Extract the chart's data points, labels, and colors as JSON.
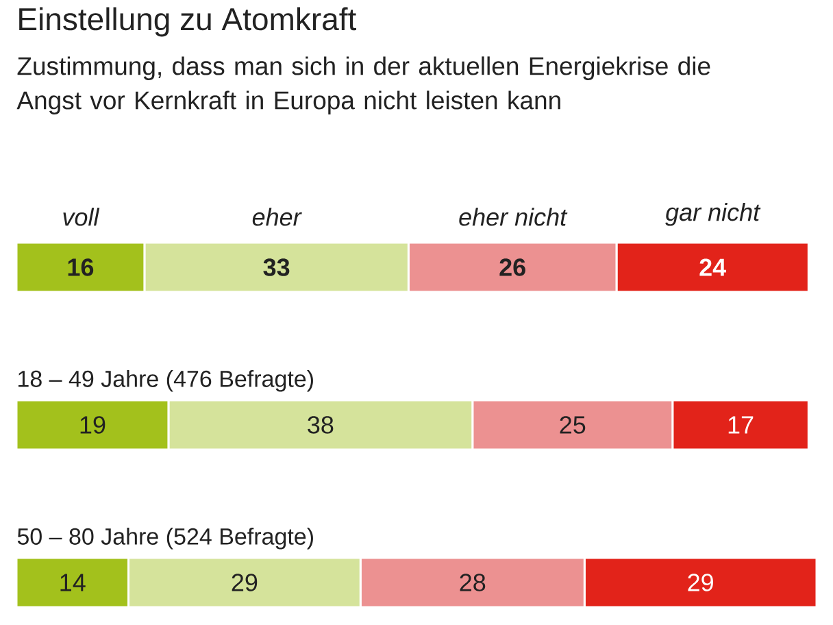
{
  "chart_data": {
    "type": "bar",
    "orientation": "horizontal",
    "stacked": true,
    "title": "Einstellung zu Atomkraft",
    "subtitle": "Zustimmung, dass man sich in der aktuellen Energiekrise die Angst vor Kernkraft in Europa nicht leisten kann",
    "categories": [
      null,
      "18 – 49 Jahre (476 Befragte)",
      "50 – 80 Jahre (524 Befragte)"
    ],
    "series": [
      {
        "name": "voll",
        "color": "#a3c11c",
        "values": [
          16,
          19,
          14
        ]
      },
      {
        "name": "eher",
        "color": "#d5e39b",
        "values": [
          33,
          38,
          29
        ]
      },
      {
        "name": "eher nicht",
        "color": "#ec9191",
        "values": [
          26,
          25,
          28
        ]
      },
      {
        "name": "gar nicht",
        "color": "#e2231a",
        "values": [
          24,
          17,
          29
        ]
      }
    ],
    "data_labels": true,
    "legend": "top"
  }
}
